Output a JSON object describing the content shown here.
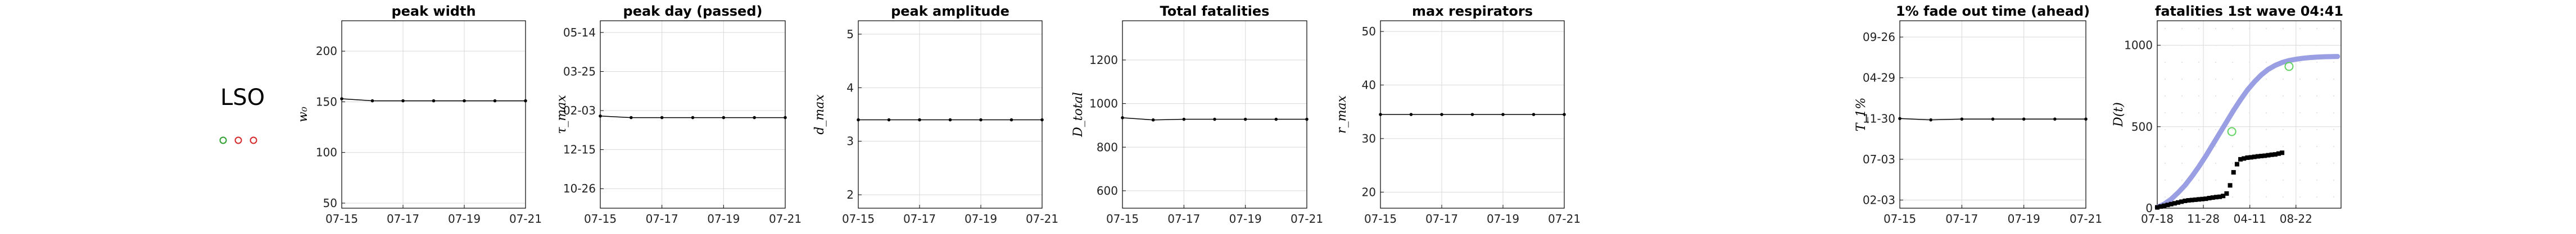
{
  "region": {
    "label": "LSO",
    "markers": [
      {
        "color": "#2ca02c"
      },
      {
        "color": "#d62728"
      },
      {
        "color": "#d62728"
      }
    ]
  },
  "style": {
    "line_color": "#000000",
    "fit_color": "#8f94e0",
    "grid_color": "#d9d9d9",
    "green_marker": "#5fd35f"
  },
  "chart_data": [
    {
      "type": "line",
      "title": "peak width",
      "ylabel": "w₀",
      "x_ticks": [
        "07-15",
        "07-17",
        "07-19",
        "07-21"
      ],
      "xlim": [
        "07-15",
        "07-21"
      ],
      "y_ticks": [
        "50",
        "100",
        "150",
        "200"
      ],
      "y_tick_values": [
        50,
        100,
        150,
        200
      ],
      "ylim": [
        45,
        230
      ],
      "x": [
        "07-15",
        "07-16",
        "07-17",
        "07-18",
        "07-19",
        "07-20",
        "07-21"
      ],
      "values": [
        153,
        151,
        151,
        151,
        151,
        151,
        151
      ]
    },
    {
      "type": "line",
      "title": "peak day (passed)",
      "ylabel": "τ_max",
      "x_ticks": [
        "07-15",
        "07-17",
        "07-19",
        "07-21"
      ],
      "xlim": [
        "07-15",
        "07-21"
      ],
      "y_ticks": [
        "10-26",
        "12-15",
        "02-03",
        "03-25",
        "05-14"
      ],
      "y_tick_values": [
        0,
        50,
        100,
        150,
        200
      ],
      "ylim": [
        -25,
        215
      ],
      "x": [
        "07-15",
        "07-16",
        "07-17",
        "07-18",
        "07-19",
        "07-20",
        "07-21"
      ],
      "values": [
        93,
        91,
        91,
        91,
        91,
        91,
        91
      ]
    },
    {
      "type": "line",
      "title": "peak amplitude",
      "ylabel": "d_max",
      "x_ticks": [
        "07-15",
        "07-17",
        "07-19",
        "07-21"
      ],
      "xlim": [
        "07-15",
        "07-21"
      ],
      "y_ticks": [
        "2",
        "3",
        "4",
        "5"
      ],
      "y_tick_values": [
        2,
        3,
        4,
        5
      ],
      "ylim": [
        1.75,
        5.25
      ],
      "x": [
        "07-15",
        "07-16",
        "07-17",
        "07-18",
        "07-19",
        "07-20",
        "07-21"
      ],
      "values": [
        3.4,
        3.4,
        3.4,
        3.4,
        3.4,
        3.4,
        3.4
      ]
    },
    {
      "type": "line",
      "title": "Total fatalities",
      "ylabel": "D_total",
      "x_ticks": [
        "07-15",
        "07-17",
        "07-19",
        "07-21"
      ],
      "xlim": [
        "07-15",
        "07-21"
      ],
      "y_ticks": [
        "600",
        "800",
        "1000",
        "1200"
      ],
      "y_tick_values": [
        600,
        800,
        1000,
        1200
      ],
      "ylim": [
        520,
        1380
      ],
      "x": [
        "07-15",
        "07-16",
        "07-17",
        "07-18",
        "07-19",
        "07-20",
        "07-21"
      ],
      "values": [
        935,
        925,
        928,
        928,
        928,
        928,
        928
      ]
    },
    {
      "type": "line",
      "title": "max respirators",
      "ylabel": "r_max",
      "x_ticks": [
        "07-15",
        "07-17",
        "07-19",
        "07-21"
      ],
      "xlim": [
        "07-15",
        "07-21"
      ],
      "y_ticks": [
        "20",
        "30",
        "40",
        "50"
      ],
      "y_tick_values": [
        20,
        30,
        40,
        50
      ],
      "ylim": [
        17,
        52
      ],
      "x": [
        "07-15",
        "07-16",
        "07-17",
        "07-18",
        "07-19",
        "07-20",
        "07-21"
      ],
      "values": [
        34.5,
        34.5,
        34.5,
        34.5,
        34.5,
        34.5,
        34.5
      ]
    },
    {
      "type": "line",
      "title": "1% fade out time (ahead)",
      "ylabel": "T_1%",
      "x_ticks": [
        "07-15",
        "07-17",
        "07-19",
        "07-21"
      ],
      "xlim": [
        "07-15",
        "07-21"
      ],
      "y_ticks": [
        "02-03",
        "07-03",
        "11-30",
        "04-29",
        "09-26"
      ],
      "y_tick_values": [
        0,
        150,
        300,
        450,
        600
      ],
      "ylim": [
        -30,
        660
      ],
      "x": [
        "07-15",
        "07-16",
        "07-17",
        "07-18",
        "07-19",
        "07-20",
        "07-21"
      ],
      "values": [
        300,
        295,
        298,
        298,
        298,
        298,
        298
      ]
    },
    {
      "type": "scatter",
      "title": "fatalities 1st wave 04:41",
      "ylabel": "D(t)",
      "x_ticks": [
        "07-18",
        "11-28",
        "04-11",
        "08-22"
      ],
      "x_tick_values": [
        0,
        133,
        267,
        400
      ],
      "xlim": [
        0,
        530
      ],
      "y_ticks": [
        "0",
        "500",
        "1000"
      ],
      "y_tick_values": [
        0,
        500,
        1000
      ],
      "ylim": [
        0,
        1150
      ],
      "fit": {
        "x": [
          0,
          20,
          40,
          60,
          80,
          100,
          120,
          140,
          160,
          180,
          200,
          220,
          240,
          260,
          280,
          300,
          320,
          340,
          360,
          380,
          400,
          420,
          440,
          460,
          480,
          500,
          520
        ],
        "values": [
          5,
          25,
          55,
          95,
          140,
          195,
          255,
          320,
          390,
          460,
          530,
          600,
          665,
          725,
          775,
          818,
          852,
          876,
          894,
          906,
          914,
          920,
          924,
          927,
          929,
          930,
          931
        ]
      },
      "observed": {
        "x": [
          0,
          10,
          20,
          30,
          40,
          50,
          60,
          70,
          80,
          90,
          100,
          110,
          120,
          130,
          140,
          150,
          160,
          170,
          180,
          190,
          200,
          210,
          220,
          230,
          240,
          250,
          260,
          270,
          280,
          290,
          300,
          310,
          320,
          330,
          340,
          350,
          360
        ],
        "values": [
          5,
          10,
          15,
          20,
          25,
          30,
          35,
          40,
          45,
          48,
          50,
          52,
          54,
          56,
          58,
          62,
          65,
          68,
          70,
          75,
          90,
          140,
          220,
          270,
          300,
          305,
          310,
          312,
          315,
          318,
          320,
          322,
          325,
          328,
          330,
          335,
          340
        ]
      },
      "highlighted": {
        "x": [
          215,
          380
        ],
        "values": [
          470,
          870
        ]
      }
    }
  ]
}
